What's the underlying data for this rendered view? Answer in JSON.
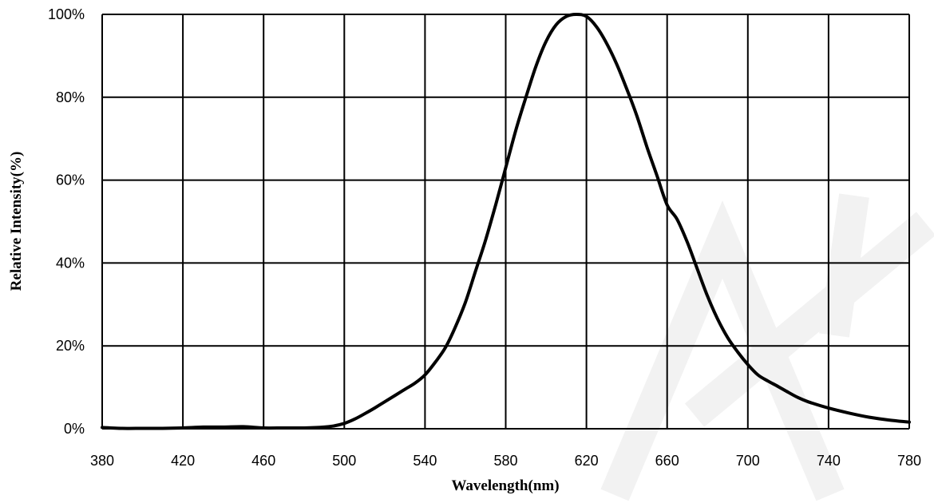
{
  "chart_data": {
    "type": "line",
    "title": "",
    "xlabel": "Wavelength(nm)",
    "ylabel": "Relative Intensity(%)",
    "xlim": [
      380,
      780
    ],
    "ylim": [
      0,
      100
    ],
    "x_ticks": [
      380,
      420,
      460,
      500,
      540,
      580,
      620,
      660,
      700,
      740,
      780
    ],
    "x_tick_labels": [
      "380",
      "420",
      "460",
      "500",
      "540",
      "580",
      "620",
      "660",
      "700",
      "740",
      "780"
    ],
    "y_ticks": [
      0,
      20,
      40,
      60,
      80,
      100
    ],
    "y_tick_labels": [
      "0%",
      "20%",
      "40%",
      "60%",
      "80%",
      "100%"
    ],
    "grid": true,
    "line_color": "#000000",
    "watermark_color": "#f2f2f2",
    "series": [
      {
        "x": [
          380,
          390,
          400,
          410,
          420,
          430,
          440,
          450,
          460,
          470,
          480,
          490,
          495,
          500,
          505,
          510,
          515,
          520,
          525,
          530,
          535,
          540,
          545,
          550,
          555,
          560,
          565,
          570,
          575,
          580,
          585,
          590,
          595,
          600,
          605,
          610,
          615,
          620,
          625,
          630,
          635,
          640,
          645,
          650,
          655,
          660,
          665,
          670,
          675,
          680,
          685,
          690,
          695,
          700,
          705,
          710,
          715,
          720,
          725,
          730,
          740,
          750,
          760,
          770,
          780
        ],
        "y": [
          0.3,
          0.1,
          0.1,
          0.1,
          0.2,
          0.4,
          0.4,
          0.5,
          0.2,
          0.2,
          0.2,
          0.4,
          0.7,
          1.3,
          2.3,
          3.6,
          5.0,
          6.5,
          8.0,
          9.5,
          11.0,
          13.0,
          16.0,
          19.5,
          24.5,
          30.5,
          38.0,
          45.5,
          54.0,
          63.0,
          72.0,
          80.0,
          87.5,
          93.5,
          97.5,
          99.5,
          100.0,
          99.5,
          97.0,
          93.0,
          88.0,
          82.0,
          75.5,
          68.0,
          61.0,
          54.0,
          50.5,
          45.0,
          38.5,
          32.0,
          26.5,
          22.0,
          18.5,
          15.5,
          13.0,
          11.5,
          10.2,
          8.8,
          7.5,
          6.5,
          5.0,
          3.8,
          2.8,
          2.1,
          1.6
        ]
      }
    ]
  }
}
